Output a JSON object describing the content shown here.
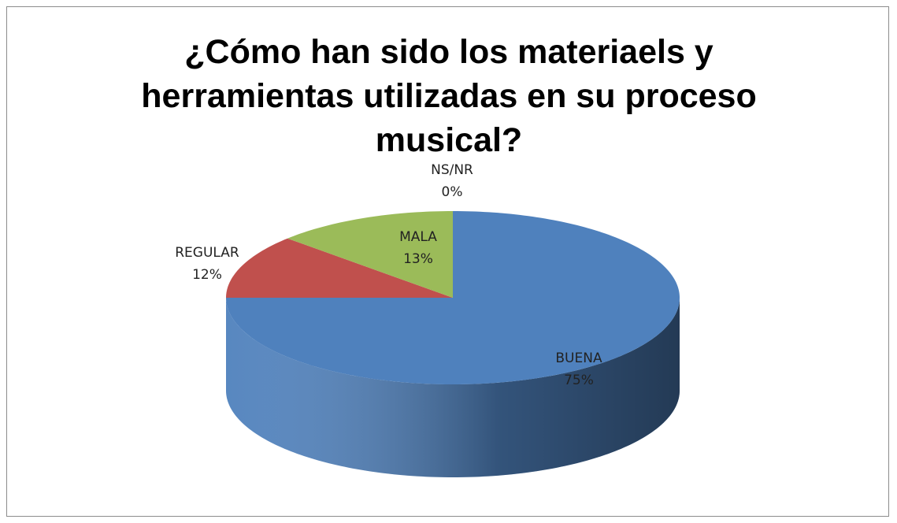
{
  "chart_data": {
    "type": "pie",
    "title": "¿Cómo han sido los materiaels y herramientas utilizadas en su proceso musical?",
    "categories": [
      "BUENA",
      "REGULAR",
      "MALA",
      "NS/NR"
    ],
    "values": [
      75,
      12,
      13,
      0
    ],
    "value_labels": [
      "75%",
      "12%",
      "13%",
      "0%"
    ],
    "colors": [
      "#4f81bd",
      "#c0504d",
      "#9bbb59",
      "#8064a2"
    ]
  }
}
